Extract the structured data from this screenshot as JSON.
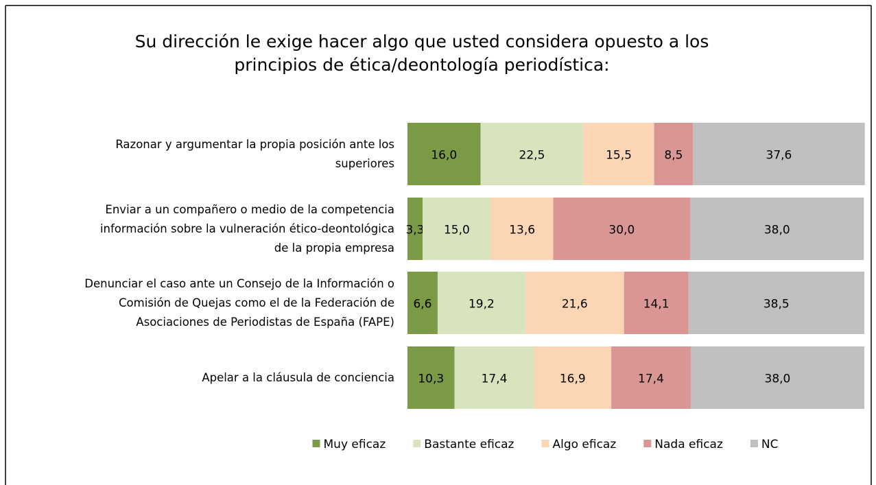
{
  "chart_data": {
    "type": "stacked_bar_horizontal",
    "title": "Su dirección le exige hacer algo que usted considera opuesto a los\nprincipios de ética/deontología periodística:",
    "categories": [
      "Razonar y argumentar la propia posición ante los\nsuperiores",
      "Enviar a un compañero o medio de la competencia\ninformación sobre la vulneración ético-deontológica\nde la propia empresa",
      "Denunciar el caso ante un Consejo de la Información o\nComisión de Quejas como el de la Federación de\nAsociaciones de Periodistas de España (FAPE)",
      "Apelar a la cláusula de conciencia"
    ],
    "series": [
      {
        "name": "Muy eficaz",
        "color": "#7a9a45",
        "values": [
          16.0,
          3.3,
          6.6,
          10.3
        ],
        "value_labels": [
          "16,0",
          "3,3",
          "6,6",
          "10,3"
        ]
      },
      {
        "name": "Bastante eficaz",
        "color": "#d7e4bd",
        "values": [
          22.5,
          15.0,
          19.2,
          17.4
        ],
        "value_labels": [
          "22,5",
          "15,0",
          "19,2",
          "17,4"
        ]
      },
      {
        "name": "Algo eficaz",
        "color": "#fcd5b5",
        "values": [
          15.5,
          13.6,
          21.6,
          16.9
        ],
        "value_labels": [
          "15,5",
          "13,6",
          "21,6",
          "16,9"
        ]
      },
      {
        "name": "Nada eficaz",
        "color": "#d99694",
        "values": [
          8.5,
          30.0,
          14.1,
          17.4
        ],
        "value_labels": [
          "8,5",
          "30,0",
          "14,1",
          "17,4"
        ]
      },
      {
        "name": "NC",
        "color": "#bfbfbf",
        "values": [
          37.6,
          38.0,
          38.5,
          38.0
        ],
        "value_labels": [
          "37,6",
          "38,0",
          "38,5",
          "38,0"
        ]
      }
    ],
    "xlim": [
      0,
      100
    ],
    "legend": "bottom"
  }
}
